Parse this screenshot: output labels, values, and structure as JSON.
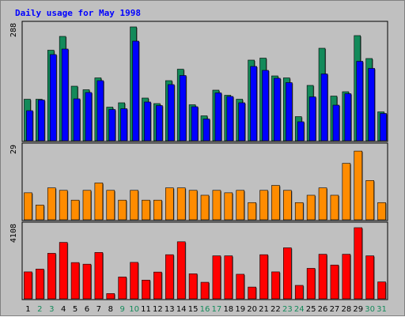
{
  "chart_data": {
    "type": "bar",
    "title": "Daily usage for May 1998",
    "categories": [
      "1",
      "2",
      "3",
      "4",
      "5",
      "6",
      "7",
      "8",
      "9",
      "10",
      "11",
      "12",
      "13",
      "14",
      "15",
      "16",
      "17",
      "18",
      "19",
      "20",
      "21",
      "22",
      "23",
      "24",
      "25",
      "26",
      "27",
      "28",
      "29",
      "30",
      "31"
    ],
    "weekend_days": [
      "2",
      "3",
      "9",
      "10",
      "16",
      "17",
      "23",
      "24",
      "30",
      "31"
    ],
    "panels": [
      {
        "ymax_label": "288",
        "ymax": 288,
        "series": [
          {
            "color": "#138a5a",
            "values": [
              105,
              105,
              229,
              264,
              138,
              129,
              159,
              85,
              96,
              288,
              108,
              94,
              152,
              181,
              91,
              63,
              128,
              115,
              105,
              204,
              209,
              164,
              159,
              61,
              140,
              234,
              113,
              124,
              266,
              208,
              73
            ]
          },
          {
            "color": "#0000ff",
            "values": [
              76,
              103,
              218,
              232,
              106,
              122,
              152,
              79,
              81,
              252,
              98,
              89,
              142,
              165,
              86,
              55,
              121,
              112,
              96,
              188,
              178,
              158,
              147,
              48,
              111,
              169,
              90,
              119,
              201,
              183,
              69
            ]
          }
        ]
      },
      {
        "ymax_label": "29",
        "ymax": 29,
        "series": [
          {
            "color": "#ff8c00",
            "values": [
              11,
              6,
              13,
              12,
              8,
              12,
              15,
              12,
              8,
              12,
              8,
              8,
              13,
              13,
              12,
              10,
              12,
              11,
              12,
              7,
              12,
              14,
              12,
              7,
              10,
              13,
              10,
              23,
              28,
              16,
              7
            ]
          }
        ]
      },
      {
        "ymax_label": "4108",
        "ymax": 4108,
        "series": [
          {
            "color": "#ff0000",
            "values": [
              1556,
              1717,
              2628,
              3259,
              2094,
              2001,
              2677,
              303,
              1262,
              2105,
              1082,
              1546,
              2548,
              3295,
              1447,
              956,
              2483,
              2483,
              1419,
              680,
              2548,
              1556,
              2945,
              776,
              1760,
              2574,
              1952,
              2574,
              4108,
              2483,
              977
            ]
          }
        ]
      }
    ],
    "colors": {
      "background": "#c0c0c0",
      "plot_background": "#c0c0c0",
      "title": "#0000ff",
      "weekday_label": "#000000",
      "weekend_label": "#138a5a"
    }
  }
}
